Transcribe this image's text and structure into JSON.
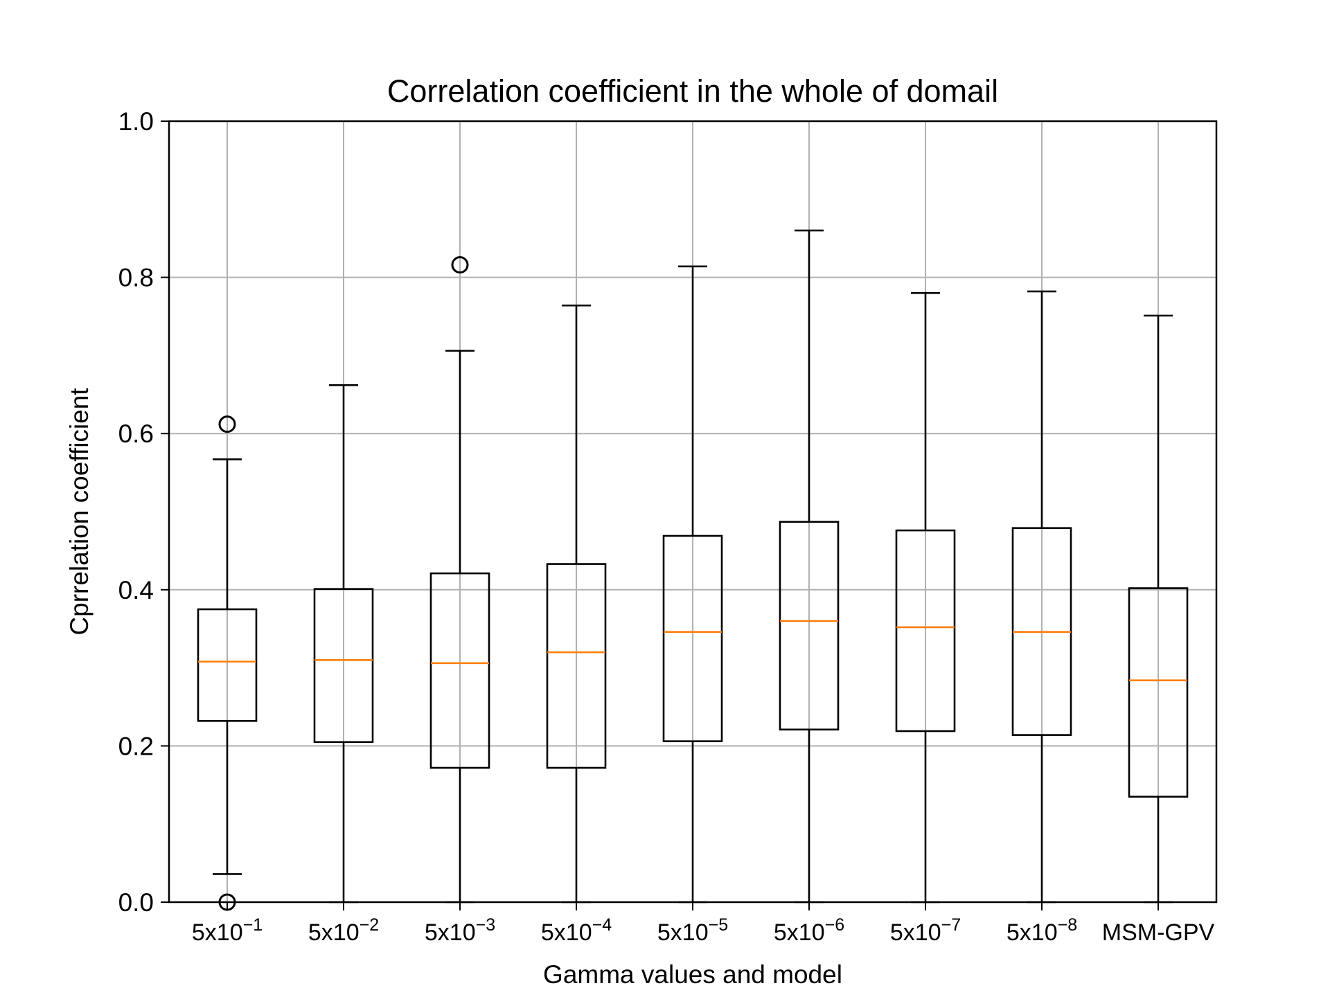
{
  "chart_data": {
    "type": "box",
    "title": "Correlation coefficient in the whole of domail",
    "xlabel": "Gamma values and model",
    "ylabel": "Cprrelation coefficient",
    "ylim": [
      0.0,
      1.0
    ],
    "yticks": [
      0.0,
      0.2,
      0.4,
      0.6,
      0.8,
      1.0
    ],
    "ytick_labels": [
      "0.0",
      "0.2",
      "0.4",
      "0.6",
      "0.8",
      "1.0"
    ],
    "grid": true,
    "categories": [
      {
        "base": "5x10",
        "exp": "−1",
        "label": "5x10^-1"
      },
      {
        "base": "5x10",
        "exp": "−2",
        "label": "5x10^-2"
      },
      {
        "base": "5x10",
        "exp": "−3",
        "label": "5x10^-3"
      },
      {
        "base": "5x10",
        "exp": "−4",
        "label": "5x10^-4"
      },
      {
        "base": "5x10",
        "exp": "−5",
        "label": "5x10^-5"
      },
      {
        "base": "5x10",
        "exp": "−6",
        "label": "5x10^-6"
      },
      {
        "base": "5x10",
        "exp": "−7",
        "label": "5x10^-7"
      },
      {
        "base": "5x10",
        "exp": "−8",
        "label": "5x10^-8"
      },
      {
        "base": "MSM-GPV",
        "exp": "",
        "label": "MSM-GPV"
      }
    ],
    "boxes": [
      {
        "whisker_low": 0.036,
        "q1": 0.232,
        "median": 0.308,
        "q3": 0.375,
        "whisker_high": 0.567,
        "outliers": [
          0.612,
          0.0
        ]
      },
      {
        "whisker_low": 0.0,
        "q1": 0.205,
        "median": 0.31,
        "q3": 0.401,
        "whisker_high": 0.662,
        "outliers": []
      },
      {
        "whisker_low": 0.0,
        "q1": 0.172,
        "median": 0.306,
        "q3": 0.421,
        "whisker_high": 0.706,
        "outliers": [
          0.816
        ]
      },
      {
        "whisker_low": 0.0,
        "q1": 0.172,
        "median": 0.32,
        "q3": 0.433,
        "whisker_high": 0.764,
        "outliers": []
      },
      {
        "whisker_low": 0.0,
        "q1": 0.206,
        "median": 0.346,
        "q3": 0.469,
        "whisker_high": 0.814,
        "outliers": []
      },
      {
        "whisker_low": 0.0,
        "q1": 0.221,
        "median": 0.36,
        "q3": 0.487,
        "whisker_high": 0.86,
        "outliers": []
      },
      {
        "whisker_low": 0.0,
        "q1": 0.219,
        "median": 0.352,
        "q3": 0.476,
        "whisker_high": 0.78,
        "outliers": []
      },
      {
        "whisker_low": 0.0,
        "q1": 0.214,
        "median": 0.346,
        "q3": 0.479,
        "whisker_high": 0.782,
        "outliers": []
      },
      {
        "whisker_low": 0.0,
        "q1": 0.135,
        "median": 0.284,
        "q3": 0.402,
        "whisker_high": 0.751,
        "outliers": []
      }
    ],
    "colors": {
      "box": "#000000",
      "median": "#ff7f0e",
      "grid": "#b0b0b0"
    }
  }
}
